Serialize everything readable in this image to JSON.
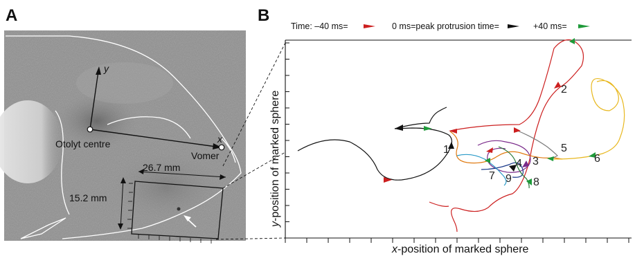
{
  "panel_a": {
    "letter": "A",
    "y_label": "y",
    "x_label": "x",
    "otolyt_label": "Otolyt centre",
    "vomer_label": "Vomer",
    "width_label": "26.7 mm",
    "height_label": "15.2 mm"
  },
  "panel_b": {
    "letter": "B",
    "legend": {
      "minus40": "Time: –40 ms=",
      "zero": "0 ms=peak protrusion time=",
      "plus40": "+40 ms=",
      "colors": {
        "minus40": "#cc1f1f",
        "zero": "#111111",
        "plus40": "#1f9a3a"
      }
    },
    "xlabel_italic": "x",
    "xlabel_rest": "-position of marked sphere",
    "ylabel_italic": "y",
    "ylabel_rest": "-position of marked sphere",
    "trajectory_labels": [
      "1",
      "2",
      "3",
      "4",
      "5",
      "6",
      "7",
      "8",
      "9"
    ],
    "trajectory_colors": [
      "#111111",
      "#cc1f1f",
      "#7a2a8a",
      "#e07a10",
      "#7a7a7a",
      "#e8b820",
      "#1a3a8a",
      "#2a7a3a",
      "#2a9ac8"
    ]
  }
}
